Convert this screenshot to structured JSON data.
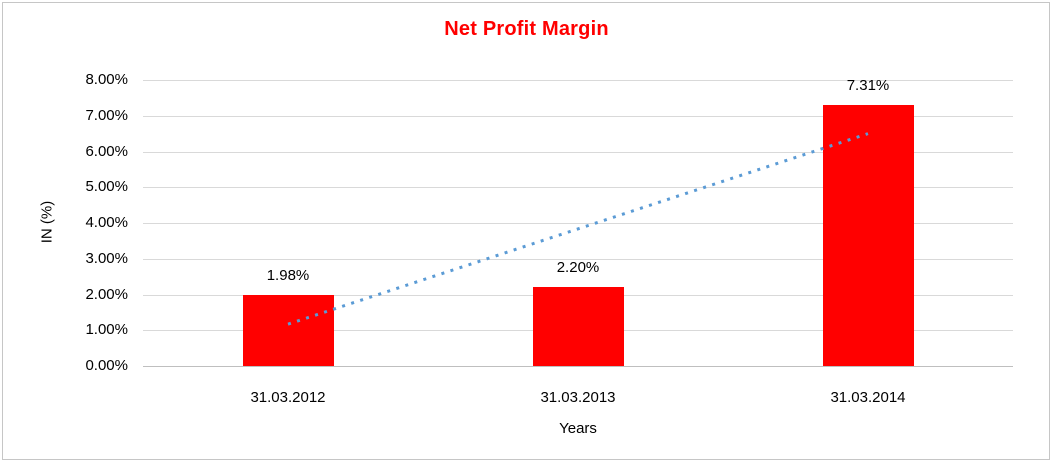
{
  "frame": {
    "border_color": "#c6c6c6",
    "background_color": "#ffffff"
  },
  "chart_data": {
    "type": "bar",
    "title": "Net Profit Margin",
    "title_color": "#ff0000",
    "categories": [
      "31.03.2012",
      "31.03.2013",
      "31.03.2014"
    ],
    "values": [
      1.98,
      2.2,
      7.31
    ],
    "value_labels": [
      "1.98%",
      "2.20%",
      "7.31%"
    ],
    "bar_color": "#ff0000",
    "xlabel": "Years",
    "ylabel": "IN (%)",
    "ylim": [
      0,
      8
    ],
    "ytick_step": 1,
    "ytick_labels": [
      "0.00%",
      "1.00%",
      "2.00%",
      "3.00%",
      "4.00%",
      "5.00%",
      "6.00%",
      "7.00%",
      "8.00%"
    ],
    "grid": true,
    "gridline_color": "#d9d9d9",
    "axis_line_color": "#bfbfbf",
    "legend": "none",
    "trendline": {
      "type": "linear",
      "style": "dotted",
      "color": "#5b9bd5",
      "start_value_pct": 1.17,
      "end_value_pct": 6.5
    }
  }
}
